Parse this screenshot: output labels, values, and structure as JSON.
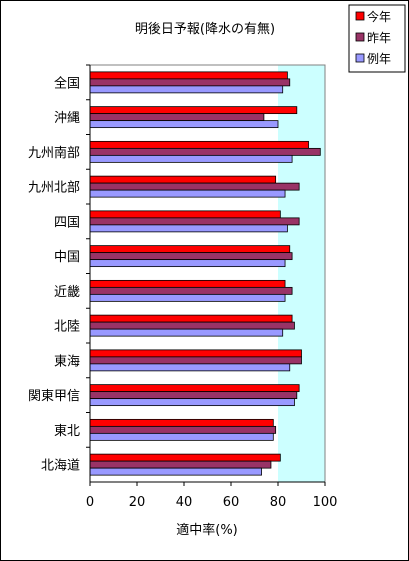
{
  "chart_data": {
    "type": "bar",
    "orientation": "horizontal",
    "title": "明後日予報(降水の有無)",
    "xlabel": "適中率(%)",
    "ylabel": "",
    "xlim": [
      0,
      100
    ],
    "xticks": [
      0,
      20,
      40,
      60,
      80,
      100
    ],
    "grid": false,
    "shaded_region_from": 80,
    "legend_position": "top-right",
    "categories": [
      "全国",
      "沖縄",
      "九州南部",
      "九州北部",
      "四国",
      "中国",
      "近畿",
      "北陸",
      "東海",
      "関東甲信",
      "東北",
      "北海道"
    ],
    "series": [
      {
        "name": "今年",
        "color": "#ff0000",
        "values": [
          84,
          88,
          93,
          79,
          81,
          85,
          83,
          86,
          90,
          89,
          78,
          81
        ]
      },
      {
        "name": "昨年",
        "color": "#993366",
        "values": [
          85,
          74,
          98,
          89,
          89,
          86,
          86,
          87,
          90,
          88,
          79,
          77
        ]
      },
      {
        "name": "例年",
        "color": "#9999ff",
        "values": [
          82,
          80,
          86,
          83,
          84,
          83,
          83,
          82,
          85,
          87,
          78,
          73
        ]
      }
    ],
    "colors": {
      "plot_background": "#ffffff",
      "shaded_background": "#ccffff"
    }
  }
}
